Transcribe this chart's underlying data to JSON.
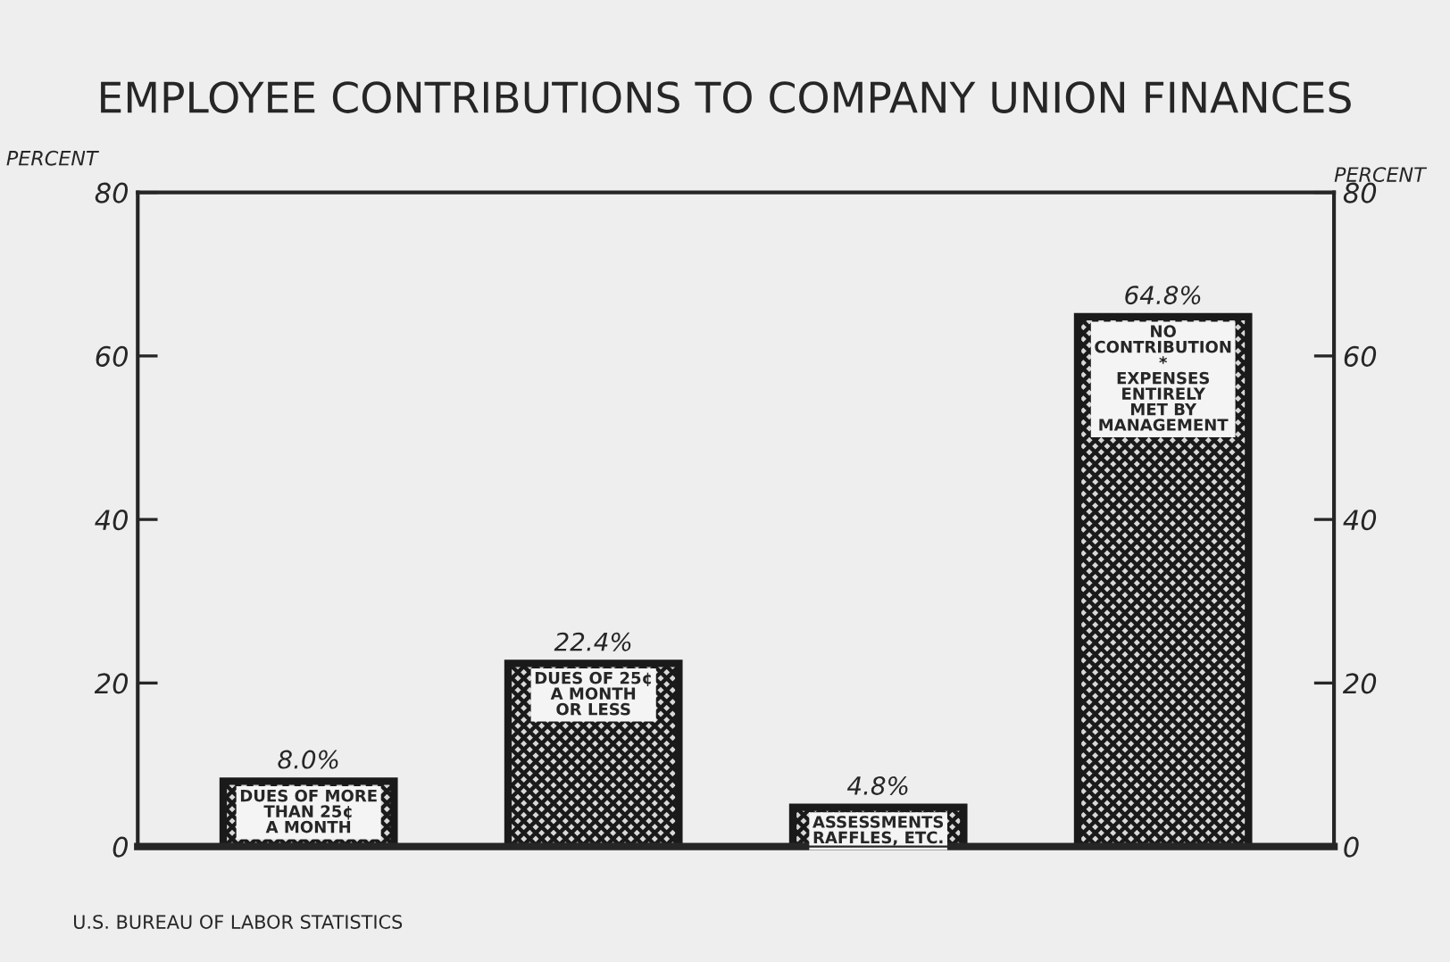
{
  "chart_data": {
    "type": "bar",
    "title": "EMPLOYEE CONTRIBUTIONS TO COMPANY UNION FINANCES",
    "categories": [
      "DUES OF MORE\nTHAN 25¢\nA MONTH",
      "DUES OF 25¢\nA MONTH\nOR LESS",
      "ASSESSMENTS\nRAFFLES, ETC.",
      "NO\nCONTRIBUTION\n*\nEXPENSES\nENTIRELY\nMET BY\nMANAGEMENT"
    ],
    "values": [
      8.0,
      22.4,
      4.8,
      64.8
    ],
    "value_labels": [
      "8.0%",
      "22.4%",
      "4.8%",
      "64.8%"
    ],
    "color": "#1a1a1a",
    "ylabel": "PERCENT",
    "y2label": "PERCENT",
    "ylim": [
      0,
      80
    ],
    "yticks": [
      0,
      20,
      40,
      60,
      80
    ],
    "y2lim": [
      0,
      80
    ],
    "y2ticks": [
      0,
      20,
      40,
      60,
      80
    ],
    "tick_labels": "y",
    "annotations": [
      "U.S. BUREAU OF LABOR STATISTICS"
    ]
  }
}
